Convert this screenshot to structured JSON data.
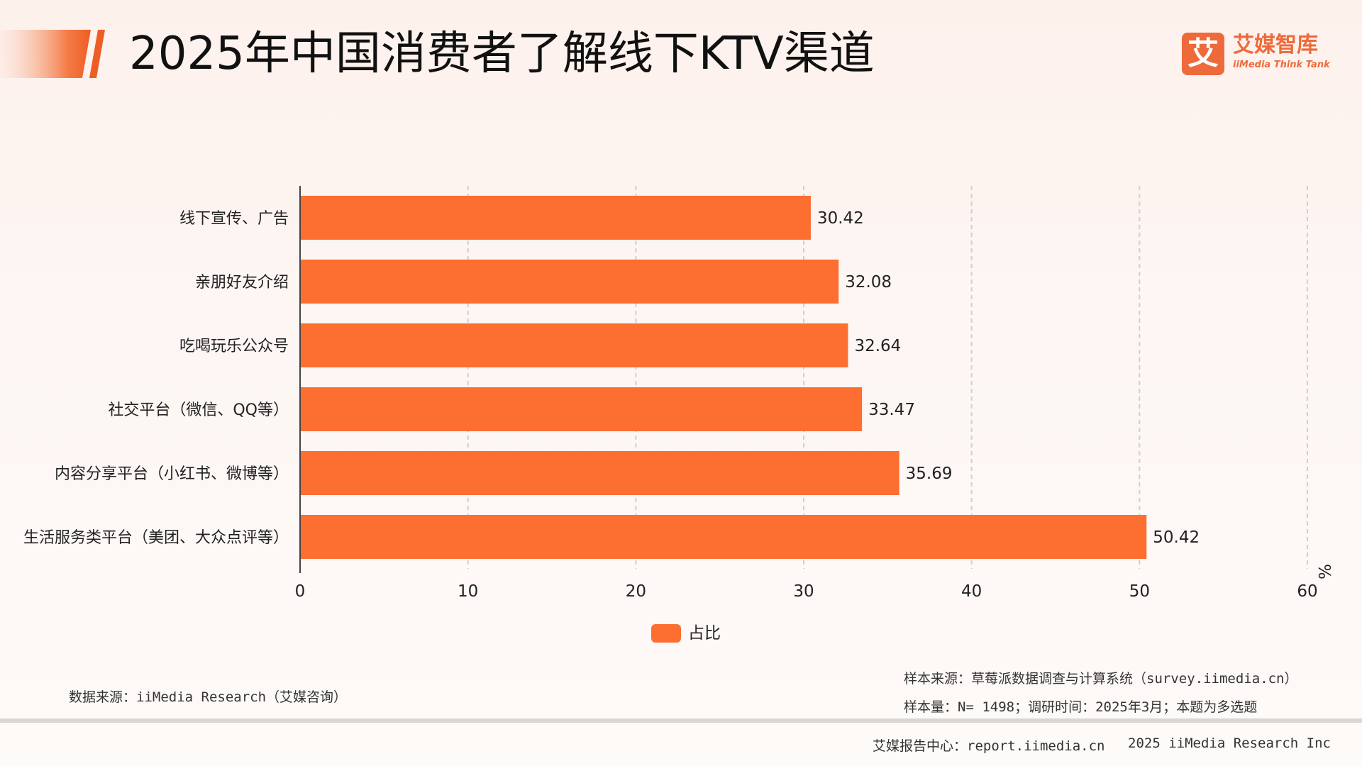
{
  "header": {
    "title": "2025年中国消费者了解线下KTV渠道",
    "logo_mark": "艾",
    "logo_name": "艾媒智库",
    "logo_sub": "iiMedia Think Tank"
  },
  "colors": {
    "bar": "#fd6e31",
    "accent": "#ee6a3a",
    "grid": "#cfcfcf",
    "axis": "#444444"
  },
  "chart_data": {
    "type": "bar",
    "orientation": "horizontal",
    "title": "2025年中国消费者了解线下KTV渠道",
    "categories": [
      "线下宣传、广告",
      "亲朋好友介绍",
      "吃喝玩乐公众号",
      "社交平台（微信、QQ等）",
      "内容分享平台（小红书、微博等）",
      "生活服务类平台（美团、大众点评等）"
    ],
    "series": [
      {
        "name": "占比",
        "values": [
          30.42,
          32.08,
          32.64,
          33.47,
          35.69,
          50.42
        ],
        "labels": [
          "30.42",
          "32.08",
          "32.64",
          "33.47",
          "35.69",
          "50.42"
        ]
      }
    ],
    "xlim": [
      0,
      60
    ],
    "xticks": [
      "0",
      "10",
      "20",
      "30",
      "40",
      "50",
      "60"
    ],
    "xunit": "%",
    "xlabel": "",
    "ylabel": "",
    "grid": true,
    "legend_position": "bottom-center"
  },
  "legend": {
    "label": "占比"
  },
  "footer": {
    "data_source": "数据来源：iiMedia Research（艾媒咨询）",
    "sample_source": "样本来源：草莓派数据调查与计算系统（survey.iimedia.cn）",
    "sample_size": "样本量：N= 1498；调研时间：2025年3月；本题为多选题",
    "report_center": "艾媒报告中心：report.iimedia.cn",
    "copyright": "2025 iiMedia Research Inc"
  }
}
